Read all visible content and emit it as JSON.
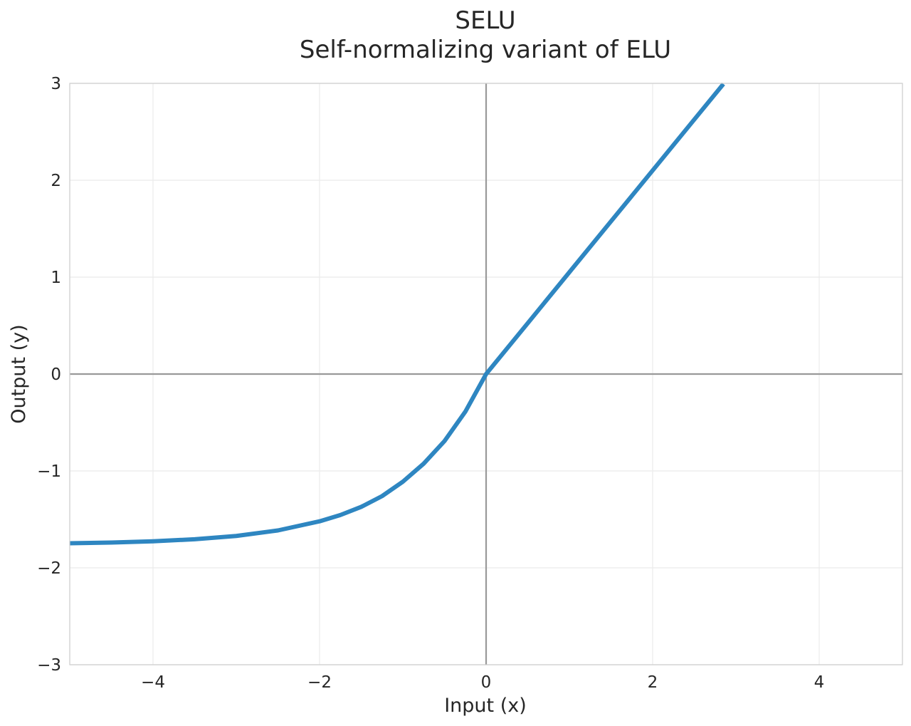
{
  "chart_data": {
    "type": "line",
    "title": "SELU",
    "subtitle": "Self-normalizing variant of ELU",
    "xlabel": "Input (x)",
    "ylabel": "Output (y)",
    "xlim": [
      -5,
      5
    ],
    "ylim": [
      -3,
      3
    ],
    "xticks": [
      -4,
      -2,
      0,
      2,
      4
    ],
    "yticks": [
      -3,
      -2,
      -1,
      0,
      1,
      2,
      3
    ],
    "xtick_labels": [
      "−4",
      "−2",
      "0",
      "2",
      "4"
    ],
    "ytick_labels": [
      "−3",
      "−2",
      "−1",
      "0",
      "1",
      "2",
      "3"
    ],
    "grid": true,
    "zero_lines": true,
    "series": [
      {
        "color": "#2e86c1",
        "x": [
          -5,
          -4.5,
          -4,
          -3.5,
          -3,
          -2.5,
          -2,
          -1.75,
          -1.5,
          -1.25,
          -1,
          -0.75,
          -0.5,
          -0.25,
          0,
          0.5,
          1,
          1.5,
          2,
          2.5,
          2.85
        ],
        "y": [
          -1.746,
          -1.739,
          -1.726,
          -1.705,
          -1.671,
          -1.614,
          -1.52,
          -1.455,
          -1.371,
          -1.26,
          -1.111,
          -0.925,
          -0.692,
          -0.389,
          0,
          0.525,
          1.051,
          1.576,
          2.101,
          2.627,
          2.994
        ]
      }
    ]
  }
}
